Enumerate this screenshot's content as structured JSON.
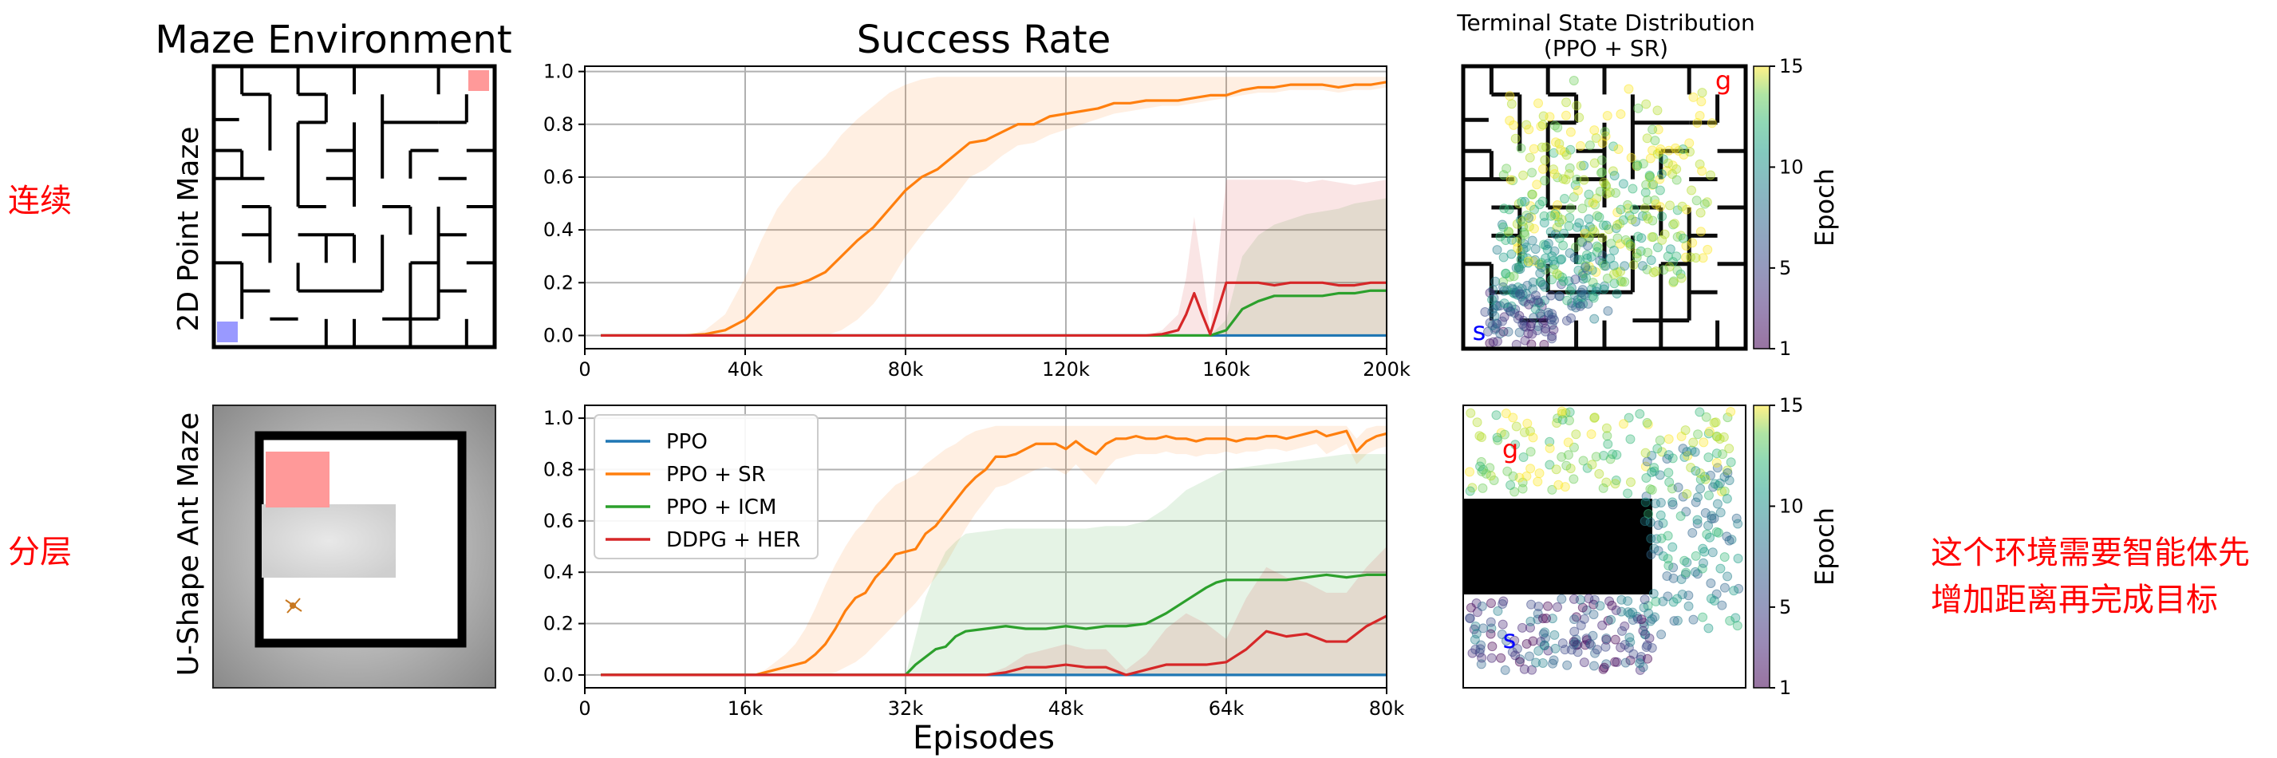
{
  "row_labels": {
    "top_left_note": "连续",
    "bottom_left_note": "分层",
    "right_note_line1": "这个环境需要智能体先",
    "right_note_line2": "增加距离再完成目标"
  },
  "maze_column": {
    "title": "Maze Environment",
    "top_ylabel": "2D Point Maze",
    "bottom_ylabel": "U-Shape Ant Maze"
  },
  "terminal_column": {
    "title_line1": "Terminal State Distribution",
    "title_line2": "(PPO + SR)",
    "goal_marker": "g",
    "start_marker": "s",
    "colorbar_label": "Epoch",
    "colorbar_ticks": [
      "1",
      "5",
      "10",
      "15"
    ],
    "colorbar_values": [
      1,
      5,
      10,
      15
    ]
  },
  "colors": {
    "PPO": "#1f77b4",
    "PPO + SR": "#ff7f0e",
    "PPO + ICM": "#2ca02c",
    "DDPG + HER": "#d62728",
    "start_square": "#9999ff",
    "goal_square": "#ff9999"
  },
  "chart_data": [
    {
      "type": "line",
      "title": "Success Rate",
      "xlabel": "",
      "ylabel": "",
      "xlim": [
        0,
        200000
      ],
      "ylim": [
        -0.05,
        1.02
      ],
      "xticks": [
        0,
        40000,
        80000,
        120000,
        160000,
        200000
      ],
      "xtick_labels": [
        "0",
        "40k",
        "80k",
        "120k",
        "160k",
        "200k"
      ],
      "yticks": [
        0.0,
        0.2,
        0.4,
        0.6,
        0.8,
        1.0
      ],
      "ytick_labels": [
        "0.0",
        "0.2",
        "0.4",
        "0.6",
        "0.8",
        "1.0"
      ],
      "grid": true,
      "series": [
        {
          "name": "PPO",
          "x": [
            4000,
            200000
          ],
          "values": [
            0,
            0
          ],
          "band": null
        },
        {
          "name": "PPO + SR",
          "x": [
            4000,
            20000,
            25000,
            30000,
            35000,
            40000,
            44000,
            48000,
            52000,
            56000,
            60000,
            64000,
            68000,
            72000,
            76000,
            80000,
            84000,
            88000,
            92000,
            96000,
            100000,
            104000,
            108000,
            112000,
            116000,
            120000,
            124000,
            128000,
            132000,
            136000,
            140000,
            144000,
            148000,
            152000,
            156000,
            160000,
            164000,
            168000,
            172000,
            176000,
            180000,
            184000,
            188000,
            192000,
            196000,
            200000
          ],
          "values": [
            0,
            0,
            0,
            0.005,
            0.02,
            0.06,
            0.12,
            0.18,
            0.19,
            0.21,
            0.24,
            0.3,
            0.36,
            0.41,
            0.48,
            0.55,
            0.6,
            0.63,
            0.68,
            0.73,
            0.74,
            0.77,
            0.8,
            0.8,
            0.83,
            0.84,
            0.85,
            0.86,
            0.88,
            0.88,
            0.89,
            0.89,
            0.89,
            0.9,
            0.91,
            0.91,
            0.93,
            0.94,
            0.94,
            0.95,
            0.95,
            0.95,
            0.94,
            0.95,
            0.95,
            0.96
          ],
          "band_lo": [
            0,
            0,
            0,
            0,
            0,
            0,
            0,
            0,
            0,
            0,
            0,
            0.02,
            0.06,
            0.12,
            0.2,
            0.3,
            0.38,
            0.45,
            0.52,
            0.6,
            0.63,
            0.68,
            0.72,
            0.73,
            0.76,
            0.78,
            0.8,
            0.82,
            0.84,
            0.85,
            0.86,
            0.87,
            0.87,
            0.88,
            0.89,
            0.9,
            0.91,
            0.92,
            0.92,
            0.93,
            0.93,
            0.93,
            0.92,
            0.93,
            0.93,
            0.94
          ],
          "band_hi": [
            0,
            0,
            0,
            0.02,
            0.08,
            0.22,
            0.36,
            0.48,
            0.56,
            0.62,
            0.68,
            0.76,
            0.82,
            0.87,
            0.92,
            0.95,
            0.97,
            0.98,
            0.98,
            0.98,
            0.98,
            0.98,
            0.98,
            0.98,
            0.98,
            0.98,
            0.98,
            0.98,
            0.98,
            0.98,
            0.98,
            0.98,
            0.98,
            0.98,
            0.98,
            0.98,
            0.98,
            0.98,
            0.98,
            0.98,
            0.98,
            0.98,
            0.98,
            0.98,
            0.98,
            0.98
          ]
        },
        {
          "name": "PPO + ICM",
          "x": [
            4000,
            156000,
            160000,
            164000,
            168000,
            172000,
            176000,
            180000,
            184000,
            188000,
            192000,
            196000,
            200000
          ],
          "values": [
            0,
            0,
            0.02,
            0.1,
            0.13,
            0.15,
            0.15,
            0.15,
            0.15,
            0.16,
            0.16,
            0.17,
            0.17
          ],
          "band_lo": [
            0,
            0,
            0,
            0,
            0,
            0,
            0,
            0,
            0,
            0,
            0,
            0,
            0
          ],
          "band_hi": [
            0,
            0,
            0.06,
            0.3,
            0.38,
            0.42,
            0.44,
            0.46,
            0.47,
            0.48,
            0.5,
            0.51,
            0.52
          ]
        },
        {
          "name": "DDPG + HER",
          "x": [
            4000,
            140000,
            144000,
            148000,
            150000,
            152000,
            154000,
            156000,
            158000,
            160000,
            164000,
            168000,
            172000,
            176000,
            180000,
            184000,
            188000,
            192000,
            196000,
            200000
          ],
          "values": [
            0,
            0,
            0.005,
            0.02,
            0.08,
            0.16,
            0.08,
            0.005,
            0.1,
            0.2,
            0.2,
            0.2,
            0.19,
            0.2,
            0.2,
            0.2,
            0.19,
            0.19,
            0.2,
            0.2
          ],
          "band_lo": [
            0,
            0,
            0,
            0,
            0,
            0,
            0,
            0,
            0,
            0,
            0,
            0,
            0,
            0,
            0,
            0,
            0,
            0,
            0,
            0
          ],
          "band_hi": [
            0,
            0,
            0.02,
            0.08,
            0.22,
            0.45,
            0.25,
            0.02,
            0.3,
            0.59,
            0.59,
            0.59,
            0.59,
            0.59,
            0.58,
            0.59,
            0.58,
            0.57,
            0.58,
            0.59
          ]
        }
      ]
    },
    {
      "type": "line",
      "title": "",
      "xlabel": "Episodes",
      "ylabel": "",
      "xlim": [
        0,
        80000
      ],
      "ylim": [
        -0.05,
        1.05
      ],
      "xticks": [
        0,
        16000,
        32000,
        48000,
        64000,
        80000
      ],
      "xtick_labels": [
        "0",
        "16k",
        "32k",
        "48k",
        "64k",
        "80k"
      ],
      "yticks": [
        0.0,
        0.2,
        0.4,
        0.6,
        0.8,
        1.0
      ],
      "ytick_labels": [
        "0.0",
        "0.2",
        "0.4",
        "0.6",
        "0.8",
        "1.0"
      ],
      "grid": true,
      "legend": "top-left",
      "series": [
        {
          "name": "PPO",
          "x": [
            1600,
            80000
          ],
          "values": [
            0,
            0
          ],
          "band": null
        },
        {
          "name": "PPO + SR",
          "x": [
            1600,
            16000,
            17000,
            18000,
            19000,
            20000,
            21000,
            22000,
            23000,
            24000,
            25000,
            26000,
            27000,
            28000,
            29000,
            30000,
            31000,
            32000,
            33000,
            34000,
            35000,
            36000,
            37000,
            38000,
            39000,
            40000,
            41000,
            42000,
            43000,
            44000,
            45000,
            46000,
            47000,
            48000,
            49000,
            50000,
            51000,
            52000,
            53000,
            54000,
            55000,
            56000,
            57000,
            58000,
            59000,
            60000,
            61000,
            62000,
            63000,
            64000,
            65000,
            66000,
            67000,
            68000,
            69000,
            70000,
            71000,
            72000,
            73000,
            74000,
            75000,
            76000,
            77000,
            78000,
            79000,
            80000
          ],
          "values": [
            0,
            0,
            0,
            0.01,
            0.02,
            0.03,
            0.04,
            0.05,
            0.08,
            0.12,
            0.18,
            0.25,
            0.3,
            0.32,
            0.38,
            0.42,
            0.47,
            0.48,
            0.49,
            0.55,
            0.58,
            0.63,
            0.68,
            0.73,
            0.77,
            0.8,
            0.85,
            0.85,
            0.86,
            0.88,
            0.9,
            0.9,
            0.9,
            0.88,
            0.91,
            0.88,
            0.86,
            0.9,
            0.92,
            0.92,
            0.93,
            0.92,
            0.92,
            0.93,
            0.92,
            0.92,
            0.91,
            0.92,
            0.92,
            0.92,
            0.91,
            0.92,
            0.92,
            0.93,
            0.93,
            0.92,
            0.93,
            0.94,
            0.95,
            0.93,
            0.94,
            0.95,
            0.87,
            0.91,
            0.93,
            0.94
          ],
          "band_lo": [
            0,
            0,
            0,
            0,
            0,
            0,
            0,
            0,
            0,
            0,
            0.01,
            0.03,
            0.05,
            0.08,
            0.12,
            0.16,
            0.2,
            0.24,
            0.28,
            0.33,
            0.38,
            0.43,
            0.5,
            0.57,
            0.63,
            0.68,
            0.73,
            0.74,
            0.76,
            0.78,
            0.8,
            0.81,
            0.8,
            0.78,
            0.82,
            0.78,
            0.74,
            0.8,
            0.84,
            0.85,
            0.86,
            0.86,
            0.86,
            0.87,
            0.86,
            0.86,
            0.85,
            0.86,
            0.86,
            0.87,
            0.86,
            0.87,
            0.87,
            0.88,
            0.88,
            0.87,
            0.88,
            0.89,
            0.9,
            0.86,
            0.88,
            0.9,
            0.82,
            0.86,
            0.88,
            0.89
          ],
          "band_hi": [
            0,
            0,
            0,
            0.02,
            0.05,
            0.08,
            0.12,
            0.18,
            0.26,
            0.35,
            0.43,
            0.5,
            0.56,
            0.6,
            0.66,
            0.7,
            0.74,
            0.76,
            0.78,
            0.82,
            0.85,
            0.88,
            0.9,
            0.93,
            0.95,
            0.96,
            0.97,
            0.97,
            0.97,
            0.97,
            0.97,
            0.97,
            0.97,
            0.97,
            0.97,
            0.97,
            0.97,
            0.97,
            0.97,
            0.97,
            0.97,
            0.97,
            0.97,
            0.97,
            0.97,
            0.97,
            0.97,
            0.97,
            0.97,
            0.97,
            0.97,
            0.97,
            0.97,
            0.97,
            0.97,
            0.97,
            0.97,
            0.97,
            0.97,
            0.97,
            0.97,
            0.97,
            0.92,
            0.96,
            0.97,
            0.97
          ]
        },
        {
          "name": "PPO + ICM",
          "x": [
            1600,
            32000,
            33000,
            34000,
            35000,
            36000,
            37000,
            38000,
            40000,
            42000,
            44000,
            46000,
            48000,
            50000,
            52000,
            54000,
            56000,
            58000,
            60000,
            62000,
            63000,
            64000,
            66000,
            68000,
            70000,
            72000,
            74000,
            76000,
            78000,
            80000
          ],
          "values": [
            0,
            0,
            0.04,
            0.07,
            0.1,
            0.11,
            0.15,
            0.17,
            0.18,
            0.19,
            0.18,
            0.18,
            0.19,
            0.18,
            0.19,
            0.19,
            0.2,
            0.24,
            0.29,
            0.34,
            0.36,
            0.37,
            0.37,
            0.37,
            0.37,
            0.38,
            0.39,
            0.38,
            0.39,
            0.39
          ],
          "band_lo": [
            0,
            0,
            0,
            0,
            0,
            0,
            0,
            0,
            0,
            0,
            0,
            0,
            0,
            0,
            0,
            0,
            0,
            0,
            0,
            0,
            0,
            0,
            0,
            0,
            0,
            0,
            0,
            0,
            0,
            0
          ],
          "band_hi": [
            0,
            0,
            0.15,
            0.3,
            0.4,
            0.48,
            0.52,
            0.55,
            0.56,
            0.57,
            0.57,
            0.57,
            0.57,
            0.57,
            0.58,
            0.58,
            0.6,
            0.65,
            0.72,
            0.76,
            0.78,
            0.8,
            0.81,
            0.82,
            0.83,
            0.84,
            0.85,
            0.86,
            0.86,
            0.86
          ]
        },
        {
          "name": "DDPG + HER",
          "x": [
            1600,
            40000,
            42000,
            44000,
            46000,
            48000,
            50000,
            52000,
            54000,
            56000,
            58000,
            60000,
            62000,
            64000,
            66000,
            68000,
            70000,
            72000,
            74000,
            76000,
            78000,
            80000
          ],
          "values": [
            0,
            0,
            0.01,
            0.03,
            0.03,
            0.04,
            0.03,
            0.03,
            0.0,
            0.02,
            0.04,
            0.04,
            0.04,
            0.05,
            0.1,
            0.17,
            0.15,
            0.16,
            0.13,
            0.13,
            0.19,
            0.23
          ],
          "band_lo": [
            0,
            0,
            0,
            0,
            0,
            0,
            0,
            0,
            0,
            0,
            0,
            0,
            0,
            0,
            0,
            0,
            0,
            0,
            0,
            0,
            0,
            0
          ],
          "band_hi": [
            0,
            0,
            0.03,
            0.08,
            0.1,
            0.12,
            0.1,
            0.1,
            0.02,
            0.08,
            0.18,
            0.24,
            0.2,
            0.14,
            0.3,
            0.42,
            0.38,
            0.36,
            0.32,
            0.32,
            0.42,
            0.5
          ]
        }
      ]
    }
  ]
}
